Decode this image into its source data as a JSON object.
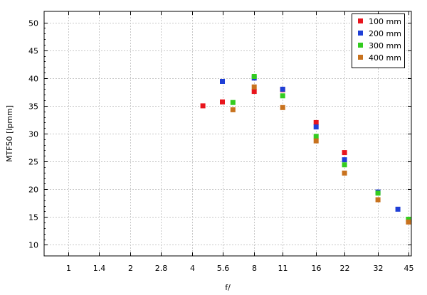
{
  "chart_data": {
    "type": "scatter",
    "title": "",
    "xlabel": "f/",
    "ylabel": "MTF50 [lpmm]",
    "x_scale": "log2",
    "x_ticks": [
      "1",
      "1.4",
      "2",
      "2.8",
      "4",
      "5.6",
      "8",
      "11",
      "16",
      "22",
      "32",
      "45"
    ],
    "y_ticks": [
      10,
      15,
      20,
      25,
      30,
      35,
      40,
      45,
      50
    ],
    "xlim": [
      0.76,
      46.5
    ],
    "ylim": [
      8,
      52
    ],
    "grid": true,
    "legend_position": "top-right",
    "series": [
      {
        "name": "100 mm",
        "color": "#e8141c",
        "points": [
          [
            4.5,
            35.0
          ],
          [
            5.6,
            35.7
          ],
          [
            8,
            37.6
          ],
          [
            11,
            37.9
          ],
          [
            16,
            32.0
          ],
          [
            22,
            26.6
          ]
        ]
      },
      {
        "name": "200 mm",
        "color": "#1f3fd6",
        "points": [
          [
            5.6,
            39.4
          ],
          [
            8,
            40.0
          ],
          [
            11,
            38.0
          ],
          [
            16,
            31.2
          ],
          [
            22,
            25.3
          ],
          [
            32,
            19.5
          ],
          [
            40,
            16.4
          ]
        ]
      },
      {
        "name": "300 mm",
        "color": "#33cc1f",
        "points": [
          [
            6.3,
            35.6
          ],
          [
            8,
            40.3
          ],
          [
            11,
            36.8
          ],
          [
            16,
            29.5
          ],
          [
            22,
            24.4
          ],
          [
            32,
            19.3
          ],
          [
            45,
            14.6
          ]
        ]
      },
      {
        "name": "400 mm",
        "color": "#c8721e",
        "points": [
          [
            6.3,
            34.3
          ],
          [
            8,
            38.4
          ],
          [
            11,
            34.7
          ],
          [
            16,
            28.7
          ],
          [
            22,
            22.9
          ],
          [
            32,
            18.1
          ],
          [
            45,
            14.1
          ]
        ]
      }
    ]
  }
}
